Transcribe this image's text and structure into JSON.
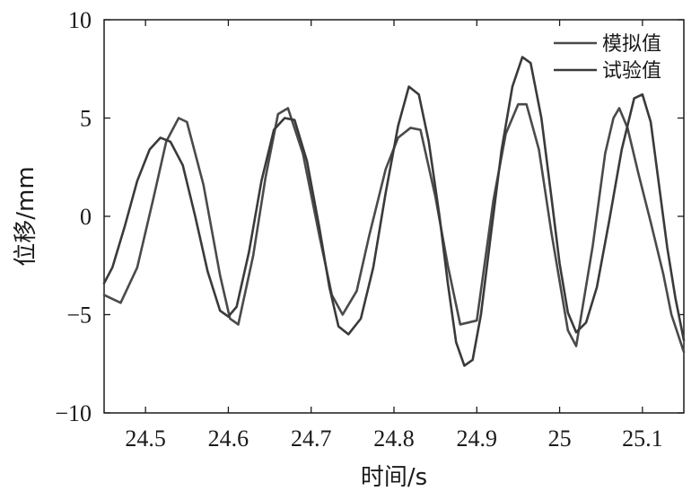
{
  "chart_data": {
    "type": "line",
    "title": "",
    "xlabel": "时间/s",
    "ylabel": "位移/mm",
    "xlim": [
      24.45,
      25.15
    ],
    "ylim": [
      -10,
      10
    ],
    "xticks": [
      24.5,
      24.6,
      24.7,
      24.8,
      24.9,
      25,
      25.1
    ],
    "xtick_labels": [
      "24.5",
      "24.6",
      "24.7",
      "24.8",
      "24.9",
      "25",
      "25.1"
    ],
    "yticks": [
      -10,
      -5,
      0,
      5,
      10
    ],
    "ytick_labels": [
      "−10",
      "−5",
      "0",
      "5",
      "10"
    ],
    "grid": false,
    "legend_position": "top-right",
    "series": [
      {
        "name": "模拟值",
        "color": "#4a4a4a",
        "points": [
          [
            24.45,
            -4.0
          ],
          [
            24.47,
            -4.4
          ],
          [
            24.49,
            -2.6
          ],
          [
            24.51,
            1.0
          ],
          [
            24.525,
            3.8
          ],
          [
            24.54,
            5.0
          ],
          [
            24.55,
            4.8
          ],
          [
            24.57,
            1.6
          ],
          [
            24.59,
            -3.0
          ],
          [
            24.602,
            -5.2
          ],
          [
            24.612,
            -5.5
          ],
          [
            24.63,
            -2.0
          ],
          [
            24.645,
            2.0
          ],
          [
            24.66,
            5.2
          ],
          [
            24.672,
            5.5
          ],
          [
            24.69,
            3.2
          ],
          [
            24.71,
            -1.0
          ],
          [
            24.725,
            -4.0
          ],
          [
            24.738,
            -5.0
          ],
          [
            24.755,
            -3.8
          ],
          [
            24.77,
            -1.0
          ],
          [
            24.79,
            2.4
          ],
          [
            24.805,
            4.0
          ],
          [
            24.82,
            4.5
          ],
          [
            24.832,
            4.4
          ],
          [
            24.85,
            1.0
          ],
          [
            24.865,
            -2.5
          ],
          [
            24.88,
            -5.5
          ],
          [
            24.9,
            -5.3
          ],
          [
            24.92,
            0.8
          ],
          [
            24.935,
            4.2
          ],
          [
            24.95,
            5.7
          ],
          [
            24.96,
            5.7
          ],
          [
            24.975,
            3.4
          ],
          [
            24.99,
            -0.8
          ],
          [
            25.0,
            -3.3
          ],
          [
            25.01,
            -5.8
          ],
          [
            25.02,
            -6.6
          ],
          [
            25.04,
            -1.5
          ],
          [
            25.055,
            3.2
          ],
          [
            25.065,
            5.0
          ],
          [
            25.072,
            5.5
          ],
          [
            25.082,
            4.5
          ],
          [
            25.095,
            2.2
          ],
          [
            25.11,
            -0.3
          ],
          [
            25.125,
            -2.9
          ],
          [
            25.135,
            -5.0
          ],
          [
            25.15,
            -6.9
          ]
        ]
      },
      {
        "name": "试验值",
        "color": "#3a3a3a",
        "points": [
          [
            24.45,
            -3.4
          ],
          [
            24.46,
            -2.6
          ],
          [
            24.475,
            -0.5
          ],
          [
            24.49,
            1.8
          ],
          [
            24.505,
            3.4
          ],
          [
            24.518,
            4.0
          ],
          [
            24.53,
            3.8
          ],
          [
            24.545,
            2.6
          ],
          [
            24.56,
            0.0
          ],
          [
            24.575,
            -2.8
          ],
          [
            24.59,
            -4.8
          ],
          [
            24.6,
            -5.1
          ],
          [
            24.61,
            -4.6
          ],
          [
            24.625,
            -1.8
          ],
          [
            24.64,
            1.8
          ],
          [
            24.655,
            4.4
          ],
          [
            24.668,
            5.0
          ],
          [
            24.68,
            4.9
          ],
          [
            24.695,
            2.8
          ],
          [
            24.71,
            -0.6
          ],
          [
            24.722,
            -3.6
          ],
          [
            24.733,
            -5.6
          ],
          [
            24.745,
            -6.0
          ],
          [
            24.76,
            -5.2
          ],
          [
            24.775,
            -2.6
          ],
          [
            24.79,
            1.2
          ],
          [
            24.805,
            4.6
          ],
          [
            24.818,
            6.6
          ],
          [
            24.83,
            6.2
          ],
          [
            24.842,
            3.8
          ],
          [
            24.855,
            0.0
          ],
          [
            24.865,
            -3.4
          ],
          [
            24.875,
            -6.4
          ],
          [
            24.885,
            -7.6
          ],
          [
            24.895,
            -7.3
          ],
          [
            24.905,
            -5.0
          ],
          [
            24.918,
            -0.6
          ],
          [
            24.93,
            3.4
          ],
          [
            24.943,
            6.6
          ],
          [
            24.955,
            8.1
          ],
          [
            24.965,
            7.8
          ],
          [
            24.978,
            5.0
          ],
          [
            24.99,
            1.0
          ],
          [
            25.0,
            -2.4
          ],
          [
            25.01,
            -4.9
          ],
          [
            25.02,
            -5.9
          ],
          [
            25.032,
            -5.4
          ],
          [
            25.045,
            -3.6
          ],
          [
            25.06,
            -0.2
          ],
          [
            25.075,
            3.4
          ],
          [
            25.09,
            6.0
          ],
          [
            25.1,
            6.2
          ],
          [
            25.11,
            4.8
          ],
          [
            25.12,
            1.6
          ],
          [
            25.13,
            -1.6
          ],
          [
            25.14,
            -4.2
          ],
          [
            25.15,
            -6.3
          ]
        ]
      }
    ]
  }
}
